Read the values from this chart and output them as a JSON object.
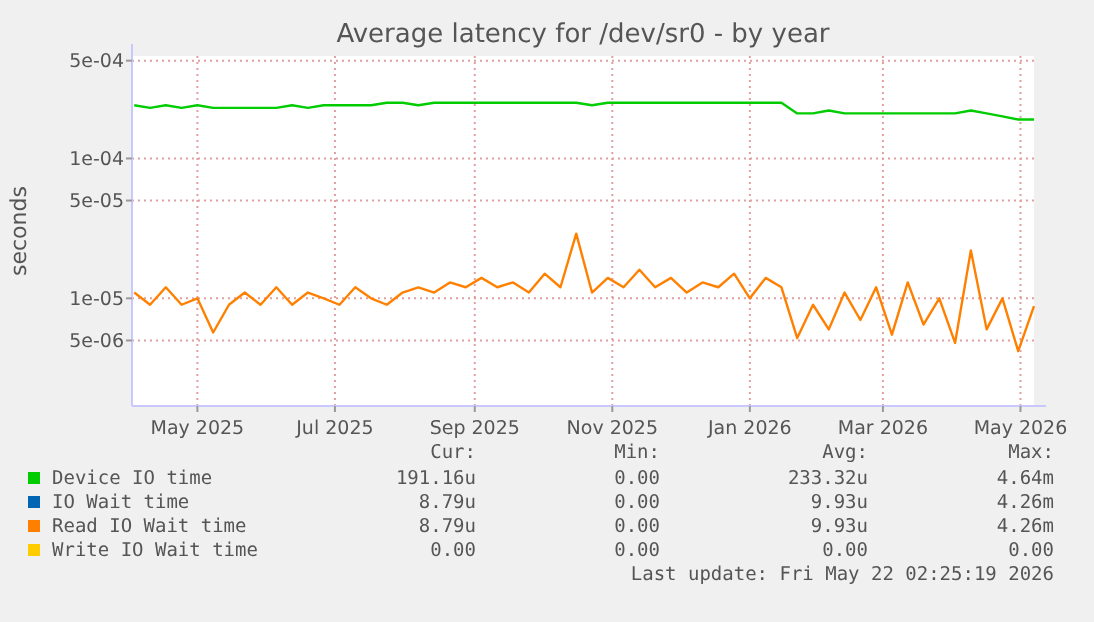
{
  "chart_data": {
    "type": "line",
    "title": "Average latency for /dev/sr0 - by year",
    "ylabel": "seconds",
    "log": "y",
    "grid": true,
    "legend": "bottom",
    "line_style": "solid",
    "x": [
      "2025-04-18",
      "2025-04-25",
      "2025-05-02",
      "2025-05-09",
      "2025-05-16",
      "2025-05-23",
      "2025-05-30",
      "2025-06-06",
      "2025-06-13",
      "2025-06-20",
      "2025-06-27",
      "2025-07-04",
      "2025-07-11",
      "2025-07-18",
      "2025-07-25",
      "2025-08-01",
      "2025-08-08",
      "2025-08-15",
      "2025-08-22",
      "2025-08-29",
      "2025-09-05",
      "2025-09-12",
      "2025-09-19",
      "2025-09-26",
      "2025-10-03",
      "2025-10-10",
      "2025-10-17",
      "2025-10-24",
      "2025-10-31",
      "2025-11-07",
      "2025-11-14",
      "2025-11-21",
      "2025-11-28",
      "2025-12-05",
      "2025-12-12",
      "2025-12-19",
      "2025-12-26",
      "2026-01-02",
      "2026-01-09",
      "2026-01-16",
      "2026-01-23",
      "2026-01-30",
      "2026-02-06",
      "2026-02-13",
      "2026-02-20",
      "2026-02-27",
      "2026-03-06",
      "2026-03-13",
      "2026-03-20",
      "2026-03-27",
      "2026-04-03",
      "2026-04-10",
      "2026-04-17",
      "2026-04-24",
      "2026-05-01",
      "2026-05-08",
      "2026-05-15",
      "2026-05-22"
    ],
    "xlim": [
      "2025-04-17",
      "2026-05-22"
    ],
    "xticks": [
      {
        "value": "2025-05-16",
        "label": "May 2025"
      },
      {
        "value": "2025-07-16",
        "label": "Jul 2025"
      },
      {
        "value": "2025-09-16",
        "label": "Sep 2025"
      },
      {
        "value": "2025-11-16",
        "label": "Nov 2025"
      },
      {
        "value": "2026-01-16",
        "label": "Jan 2026"
      },
      {
        "value": "2026-03-16",
        "label": "Mar 2026"
      },
      {
        "value": "2026-05-16",
        "label": "May 2026"
      }
    ],
    "ylim": [
      1.7e-06,
      0.00054
    ],
    "yticks": [
      {
        "value": 5e-06,
        "label": "5e-06"
      },
      {
        "value": 1e-05,
        "label": "1e-05"
      },
      {
        "value": 5e-05,
        "label": "5e-05"
      },
      {
        "value": 0.0001,
        "label": "1e-04"
      },
      {
        "value": 0.0005,
        "label": "5e-04"
      }
    ],
    "series": [
      {
        "name": "Device IO time",
        "color": "#00cc00",
        "values": [
          0.00024,
          0.00023,
          0.00024,
          0.00023,
          0.00024,
          0.00023,
          0.00023,
          0.00023,
          0.00023,
          0.00023,
          0.00024,
          0.00023,
          0.00024,
          0.00024,
          0.00024,
          0.00024,
          0.00025,
          0.00025,
          0.00024,
          0.00025,
          0.00025,
          0.00025,
          0.00025,
          0.00025,
          0.00025,
          0.00025,
          0.00025,
          0.00025,
          0.00025,
          0.00024,
          0.00025,
          0.00025,
          0.00025,
          0.00025,
          0.00025,
          0.00025,
          0.00025,
          0.00025,
          0.00025,
          0.00025,
          0.00025,
          0.00025,
          0.00021,
          0.00021,
          0.00022,
          0.00021,
          0.00021,
          0.00021,
          0.00021,
          0.00021,
          0.00021,
          0.00021,
          0.00021,
          0.00022,
          0.00021,
          0.0002,
          0.00019,
          0.00019
        ]
      },
      {
        "name": "IO Wait time",
        "color": "#0066b3",
        "values": [
          null,
          null,
          null,
          null,
          null,
          null,
          null,
          null,
          null,
          null,
          null,
          null,
          null,
          null,
          null,
          null,
          null,
          null,
          null,
          null,
          null,
          null,
          null,
          null,
          null,
          null,
          null,
          null,
          null,
          null,
          null,
          null,
          null,
          null,
          null,
          null,
          null,
          null,
          null,
          null,
          null,
          null,
          null,
          null,
          null,
          null,
          null,
          null,
          null,
          null,
          null,
          null,
          null,
          null,
          null,
          null,
          null,
          null
        ]
      },
      {
        "name": "Read IO Wait time",
        "color": "#ff8000",
        "values": [
          1.1e-05,
          9e-06,
          1.2e-05,
          9e-06,
          1e-05,
          5.7e-06,
          9e-06,
          1.1e-05,
          9e-06,
          1.2e-05,
          9e-06,
          1.1e-05,
          1e-05,
          9e-06,
          1.2e-05,
          1e-05,
          9e-06,
          1.1e-05,
          1.2e-05,
          1.1e-05,
          1.3e-05,
          1.2e-05,
          1.4e-05,
          1.2e-05,
          1.3e-05,
          1.1e-05,
          1.5e-05,
          1.2e-05,
          2.9e-05,
          1.1e-05,
          1.4e-05,
          1.2e-05,
          1.6e-05,
          1.2e-05,
          1.4e-05,
          1.1e-05,
          1.3e-05,
          1.2e-05,
          1.5e-05,
          1e-05,
          1.4e-05,
          1.2e-05,
          5.2e-06,
          9e-06,
          6e-06,
          1.1e-05,
          7e-06,
          1.2e-05,
          5.5e-06,
          1.3e-05,
          6.5e-06,
          1e-05,
          4.8e-06,
          2.2e-05,
          6e-06,
          1e-05,
          4.2e-06,
          8.79e-06
        ]
      },
      {
        "name": "Write IO Wait time",
        "color": "#ffcc00",
        "values": [
          null,
          null,
          null,
          null,
          null,
          null,
          null,
          null,
          null,
          null,
          null,
          null,
          null,
          null,
          null,
          null,
          null,
          null,
          null,
          null,
          null,
          null,
          null,
          null,
          null,
          null,
          null,
          null,
          null,
          null,
          null,
          null,
          null,
          null,
          null,
          null,
          null,
          null,
          null,
          null,
          null,
          null,
          null,
          null,
          null,
          null,
          null,
          null,
          null,
          null,
          null,
          null,
          null,
          null,
          null,
          null,
          null,
          null
        ]
      }
    ],
    "annotations": [
      "Cur:",
      "Min:",
      "Avg:",
      "Max:",
      "191.16u",
      "0.00",
      "233.32u",
      "4.64m",
      "8.79u",
      "0.00",
      "9.93u",
      "4.26m",
      "8.79u",
      "0.00",
      "9.93u",
      "4.26m",
      "0.00",
      "0.00",
      "0.00",
      "0.00",
      "Last update: Fri May 22 02:25:19 2026"
    ]
  }
}
